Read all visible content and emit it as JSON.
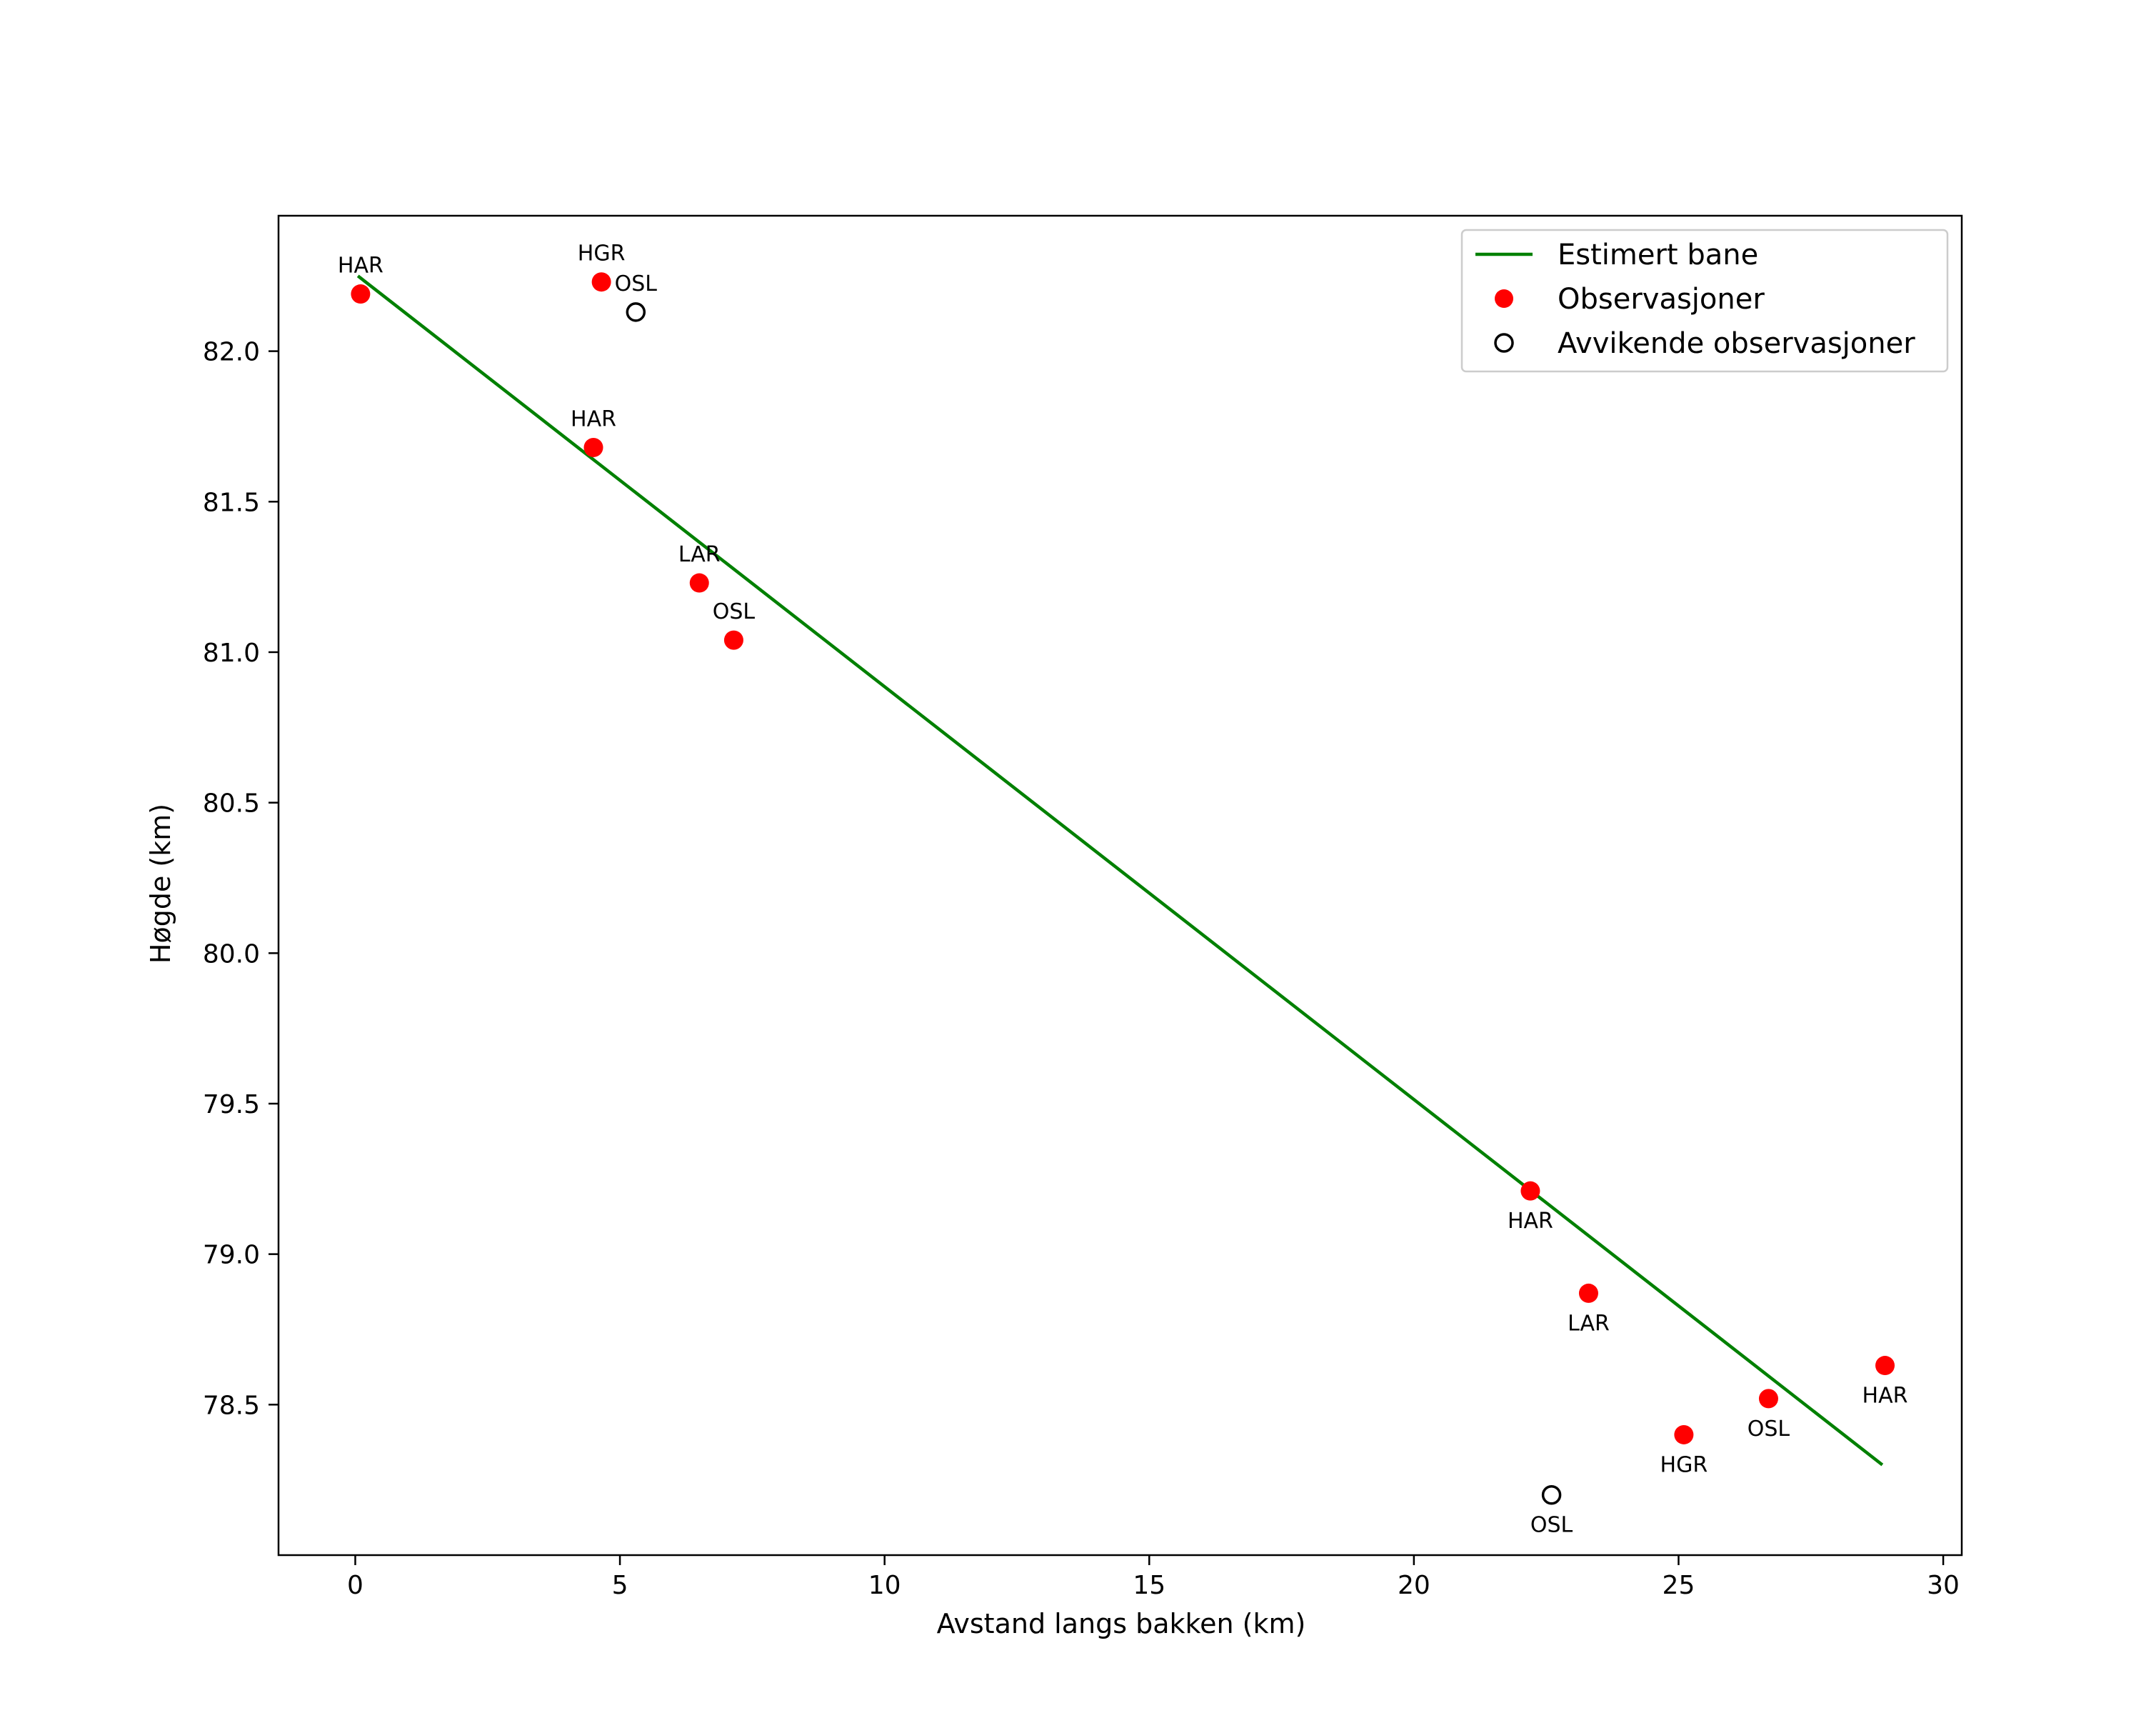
{
  "chart_data": {
    "type": "scatter",
    "title": "",
    "xlabel": "Avstand langs bakken (km)",
    "ylabel": "Høgde (km)",
    "xlim": [
      -1.45,
      30.35
    ],
    "ylim": [
      78.0,
      82.45
    ],
    "xticks": [
      0,
      5,
      10,
      15,
      20,
      25,
      30
    ],
    "xtick_labels": [
      "0",
      "5",
      "10",
      "15",
      "20",
      "25",
      "30"
    ],
    "yticks": [
      78.5,
      79.0,
      79.5,
      80.0,
      80.5,
      81.0,
      81.5,
      82.0
    ],
    "ytick_labels": [
      "78.5",
      "79.0",
      "79.5",
      "80.0",
      "80.5",
      "81.0",
      "81.5",
      "82.0"
    ],
    "grid": false,
    "legend_position": "top-right",
    "series": [
      {
        "name": "Estimert bane",
        "kind": "line",
        "color": "#008000",
        "x": [
          0.05,
          28.85
        ],
        "y": [
          82.25,
          78.3
        ]
      },
      {
        "name": "Observasjoner",
        "kind": "scatter",
        "color": "#ff0000",
        "points": [
          {
            "x": 0.1,
            "y": 82.19,
            "label": "HAR",
            "label_pos": "above"
          },
          {
            "x": 4.65,
            "y": 82.23,
            "label": "HGR",
            "label_pos": "above"
          },
          {
            "x": 4.5,
            "y": 81.68,
            "label": "HAR",
            "label_pos": "above"
          },
          {
            "x": 6.5,
            "y": 81.23,
            "label": "LAR",
            "label_pos": "above"
          },
          {
            "x": 7.15,
            "y": 81.04,
            "label": "OSL",
            "label_pos": "above"
          },
          {
            "x": 22.2,
            "y": 79.21,
            "label": "HAR",
            "label_pos": "below"
          },
          {
            "x": 23.3,
            "y": 78.87,
            "label": "LAR",
            "label_pos": "below"
          },
          {
            "x": 25.1,
            "y": 78.4,
            "label": "HGR",
            "label_pos": "below"
          },
          {
            "x": 26.7,
            "y": 78.52,
            "label": "OSL",
            "label_pos": "below"
          },
          {
            "x": 28.9,
            "y": 78.63,
            "label": "HAR",
            "label_pos": "below"
          }
        ]
      },
      {
        "name": "Avvikende observasjoner",
        "kind": "scatter-open",
        "color": "#000000",
        "points": [
          {
            "x": 5.3,
            "y": 82.13,
            "label": "OSL",
            "label_pos": "above"
          },
          {
            "x": 22.6,
            "y": 78.2,
            "label": "OSL",
            "label_pos": "below"
          }
        ]
      }
    ]
  }
}
